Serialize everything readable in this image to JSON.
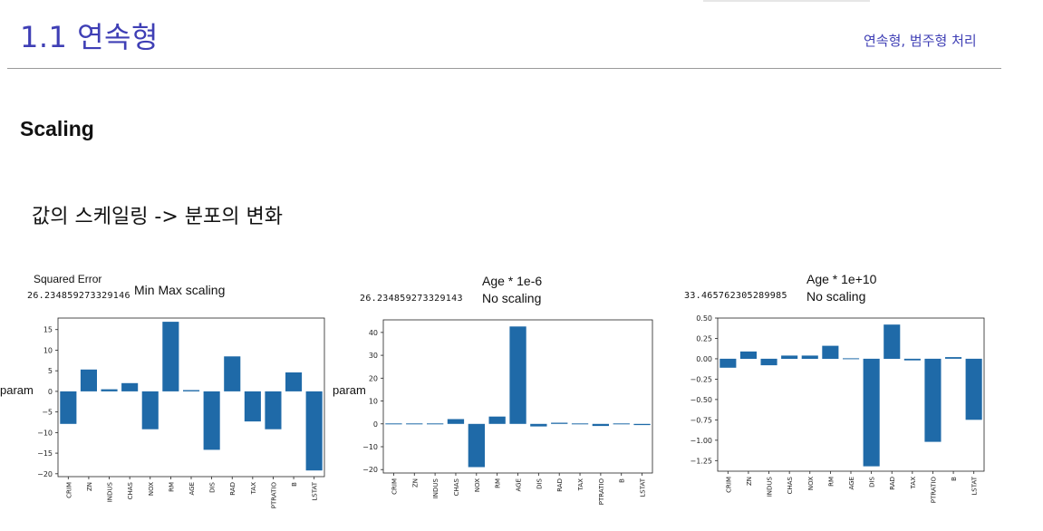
{
  "slide": {
    "title": "1.1 연속형",
    "header_right": "연속형, 범주형 처리",
    "section_title": "Scaling",
    "description": "값의 스케일링 -> 분포의 변화",
    "squared_error_label": "Squared Error"
  },
  "colors": {
    "accent": "#3f3fb5",
    "bar": "#1f6aa8"
  },
  "chart_data": [
    {
      "type": "bar",
      "error_value": "26.234859273329146",
      "title_line1": "",
      "title_line2": "Min Max scaling",
      "ylabel": "param",
      "categories": [
        "CRIM",
        "ZN",
        "INDUS",
        "CHAS",
        "NOX",
        "RM",
        "AGE",
        "DIS",
        "RAD",
        "TAX",
        "PTRATIO",
        "B",
        "LSTAT"
      ],
      "values": [
        -7.9,
        5.3,
        0.5,
        2.0,
        -9.2,
        16.9,
        0.3,
        -14.2,
        8.5,
        -7.3,
        -9.2,
        4.6,
        -19.2
      ],
      "ylim": [
        -20.7,
        17.8
      ],
      "yticks": [
        15,
        10,
        5,
        0,
        -5,
        -10,
        -15,
        -20
      ],
      "ytick_labels": [
        "15",
        "10",
        "5",
        "0",
        "−5",
        "−10",
        "−15",
        "−20"
      ]
    },
    {
      "type": "bar",
      "error_value": "26.234859273329143",
      "title_line1": "Age * 1e-6",
      "title_line2": "No scaling",
      "ylabel": "param",
      "categories": [
        "CRIM",
        "ZN",
        "INDUS",
        "CHAS",
        "NOX",
        "RM",
        "AGE",
        "DIS",
        "RAD",
        "TAX",
        "PTRATIO",
        "B",
        "LSTAT"
      ],
      "values": [
        -0.1,
        0.05,
        0.02,
        2.1,
        -18.9,
        3.2,
        42.6,
        -1.1,
        0.5,
        0.0,
        -0.9,
        0.0,
        -0.5
      ],
      "ylim": [
        -21.5,
        45.5
      ],
      "yticks": [
        40,
        30,
        20,
        10,
        0,
        -10,
        -20
      ],
      "ytick_labels": [
        "40",
        "30",
        "20",
        "10",
        "0",
        "−10",
        "−20"
      ]
    },
    {
      "type": "bar",
      "error_value": "33.465762305289985",
      "title_line1": "Age * 1e+10",
      "title_line2": "No scaling",
      "ylabel": "",
      "categories": [
        "CRIM",
        "ZN",
        "INDUS",
        "CHAS",
        "NOX",
        "RM",
        "AGE",
        "DIS",
        "RAD",
        "TAX",
        "PTRATIO",
        "B",
        "LSTAT"
      ],
      "values": [
        -0.11,
        0.09,
        -0.08,
        0.04,
        0.04,
        0.16,
        0.0,
        -1.32,
        0.42,
        -0.02,
        -1.02,
        0.02,
        -0.75
      ],
      "ylim": [
        -1.38,
        0.5
      ],
      "yticks": [
        0.5,
        0.25,
        0.0,
        -0.25,
        -0.5,
        -0.75,
        -1.0,
        -1.25
      ],
      "ytick_labels": [
        "0.50",
        "0.25",
        "0.00",
        "−0.25",
        "−0.50",
        "−0.75",
        "−1.00",
        "−1.25"
      ]
    }
  ]
}
